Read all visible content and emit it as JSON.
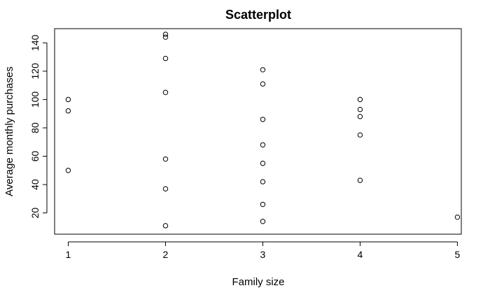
{
  "chart_data": {
    "type": "scatter",
    "title": "Scatterplot",
    "xlabel": "Family size",
    "ylabel": "Average monthly purchases",
    "xlim": [
      0.86,
      5.04
    ],
    "ylim": [
      5,
      150
    ],
    "xticks": [
      1,
      2,
      3,
      4,
      5
    ],
    "yticks": [
      20,
      40,
      60,
      80,
      100,
      120,
      140
    ],
    "grid": false,
    "legend": "none",
    "points": [
      {
        "x": 1,
        "y": 100
      },
      {
        "x": 1,
        "y": 92
      },
      {
        "x": 1,
        "y": 50
      },
      {
        "x": 2,
        "y": 146
      },
      {
        "x": 2,
        "y": 144
      },
      {
        "x": 2,
        "y": 129
      },
      {
        "x": 2,
        "y": 105
      },
      {
        "x": 2,
        "y": 58
      },
      {
        "x": 2,
        "y": 37
      },
      {
        "x": 2,
        "y": 11
      },
      {
        "x": 3,
        "y": 121
      },
      {
        "x": 3,
        "y": 111
      },
      {
        "x": 3,
        "y": 86
      },
      {
        "x": 3,
        "y": 68
      },
      {
        "x": 3,
        "y": 55
      },
      {
        "x": 3,
        "y": 42
      },
      {
        "x": 3,
        "y": 26
      },
      {
        "x": 3,
        "y": 14
      },
      {
        "x": 4,
        "y": 100
      },
      {
        "x": 4,
        "y": 93
      },
      {
        "x": 4,
        "y": 88
      },
      {
        "x": 4,
        "y": 75
      },
      {
        "x": 4,
        "y": 43
      },
      {
        "x": 5,
        "y": 17
      }
    ]
  }
}
